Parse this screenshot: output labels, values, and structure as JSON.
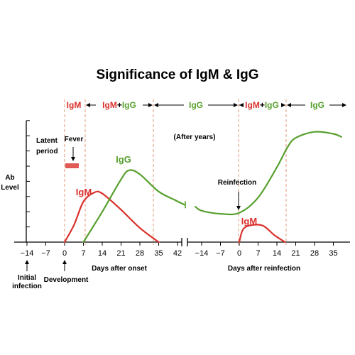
{
  "chart_data": {
    "type": "line",
    "title": "Significance of IgM & IgG",
    "ylabel": "Ab Level",
    "xlabels": {
      "primary": "Days after onset",
      "secondary": "Days after reinfection"
    },
    "primary_ticks": [
      "−14",
      "−7",
      "0",
      "7",
      "14",
      "21",
      "28",
      "35",
      "42"
    ],
    "secondary_ticks": [
      "−14",
      "−7",
      "0",
      "7",
      "14",
      "21",
      "28",
      "35"
    ],
    "bands": [
      {
        "text": "IgM",
        "parts": [
          {
            "t": "IgM",
            "c": "red"
          }
        ]
      },
      {
        "text": "IgM+IgG",
        "parts": [
          {
            "t": "IgM",
            "c": "red"
          },
          {
            "t": "+",
            "c": "black"
          },
          {
            "t": "IgG",
            "c": "green"
          }
        ]
      },
      {
        "text": "IgG",
        "parts": [
          {
            "t": "IgG",
            "c": "green"
          }
        ]
      },
      {
        "text": "IgM+IgG",
        "parts": [
          {
            "t": "IgM",
            "c": "red"
          },
          {
            "t": "+",
            "c": "black"
          },
          {
            "t": "IgG",
            "c": "green"
          }
        ]
      },
      {
        "text": "IgG",
        "parts": [
          {
            "t": "IgG",
            "c": "green"
          }
        ]
      }
    ],
    "annotations": {
      "latent": "Latent\nperiod",
      "fever": "Fever",
      "after_years": "(After years)",
      "reinfection": "Reinfection",
      "initial_infection": "Initial\ninfection",
      "development": "Development"
    },
    "series": [
      {
        "name": "IgM",
        "color": "#d9302b",
        "segments": [
          {
            "axis": "primary",
            "points": [
              [
                0,
                0
              ],
              [
                3.5,
                1.7
              ],
              [
                7,
                4.0
              ],
              [
                11,
                4.9
              ],
              [
                14,
                4.8
              ],
              [
                21,
                3.2
              ],
              [
                28,
                1.4
              ],
              [
                35,
                0
              ]
            ]
          },
          {
            "axis": "secondary",
            "points": [
              [
                0,
                0
              ],
              [
                1.5,
                1.3
              ],
              [
                5,
                1.7
              ],
              [
                9,
                1.6
              ],
              [
                13,
                0.7
              ],
              [
                17,
                0
              ]
            ]
          }
        ]
      },
      {
        "name": "IgG",
        "color": "#58a02e",
        "segments": [
          {
            "axis": "primary",
            "points": [
              [
                7,
                0
              ],
              [
                14,
                3.0
              ],
              [
                21,
                6.2
              ],
              [
                24,
                7.1
              ],
              [
                28,
                6.7
              ],
              [
                35,
                5.0
              ],
              [
                41.5,
                4.1
              ],
              [
                44.6,
                3.7
              ]
            ]
          },
          {
            "axis": "secondary",
            "points": [
              [
                -16.3,
                3.5
              ],
              [
                -14,
                3.1
              ],
              [
                -7,
                2.8
              ],
              [
                0,
                2.9
              ],
              [
                7,
                4.4
              ],
              [
                14,
                7.4
              ],
              [
                18,
                9.4
              ],
              [
                21,
                10.3
              ],
              [
                28,
                10.9
              ],
              [
                35,
                10.7
              ],
              [
                38,
                10.4
              ]
            ]
          }
        ]
      }
    ],
    "ylim": [
      0,
      12
    ]
  }
}
